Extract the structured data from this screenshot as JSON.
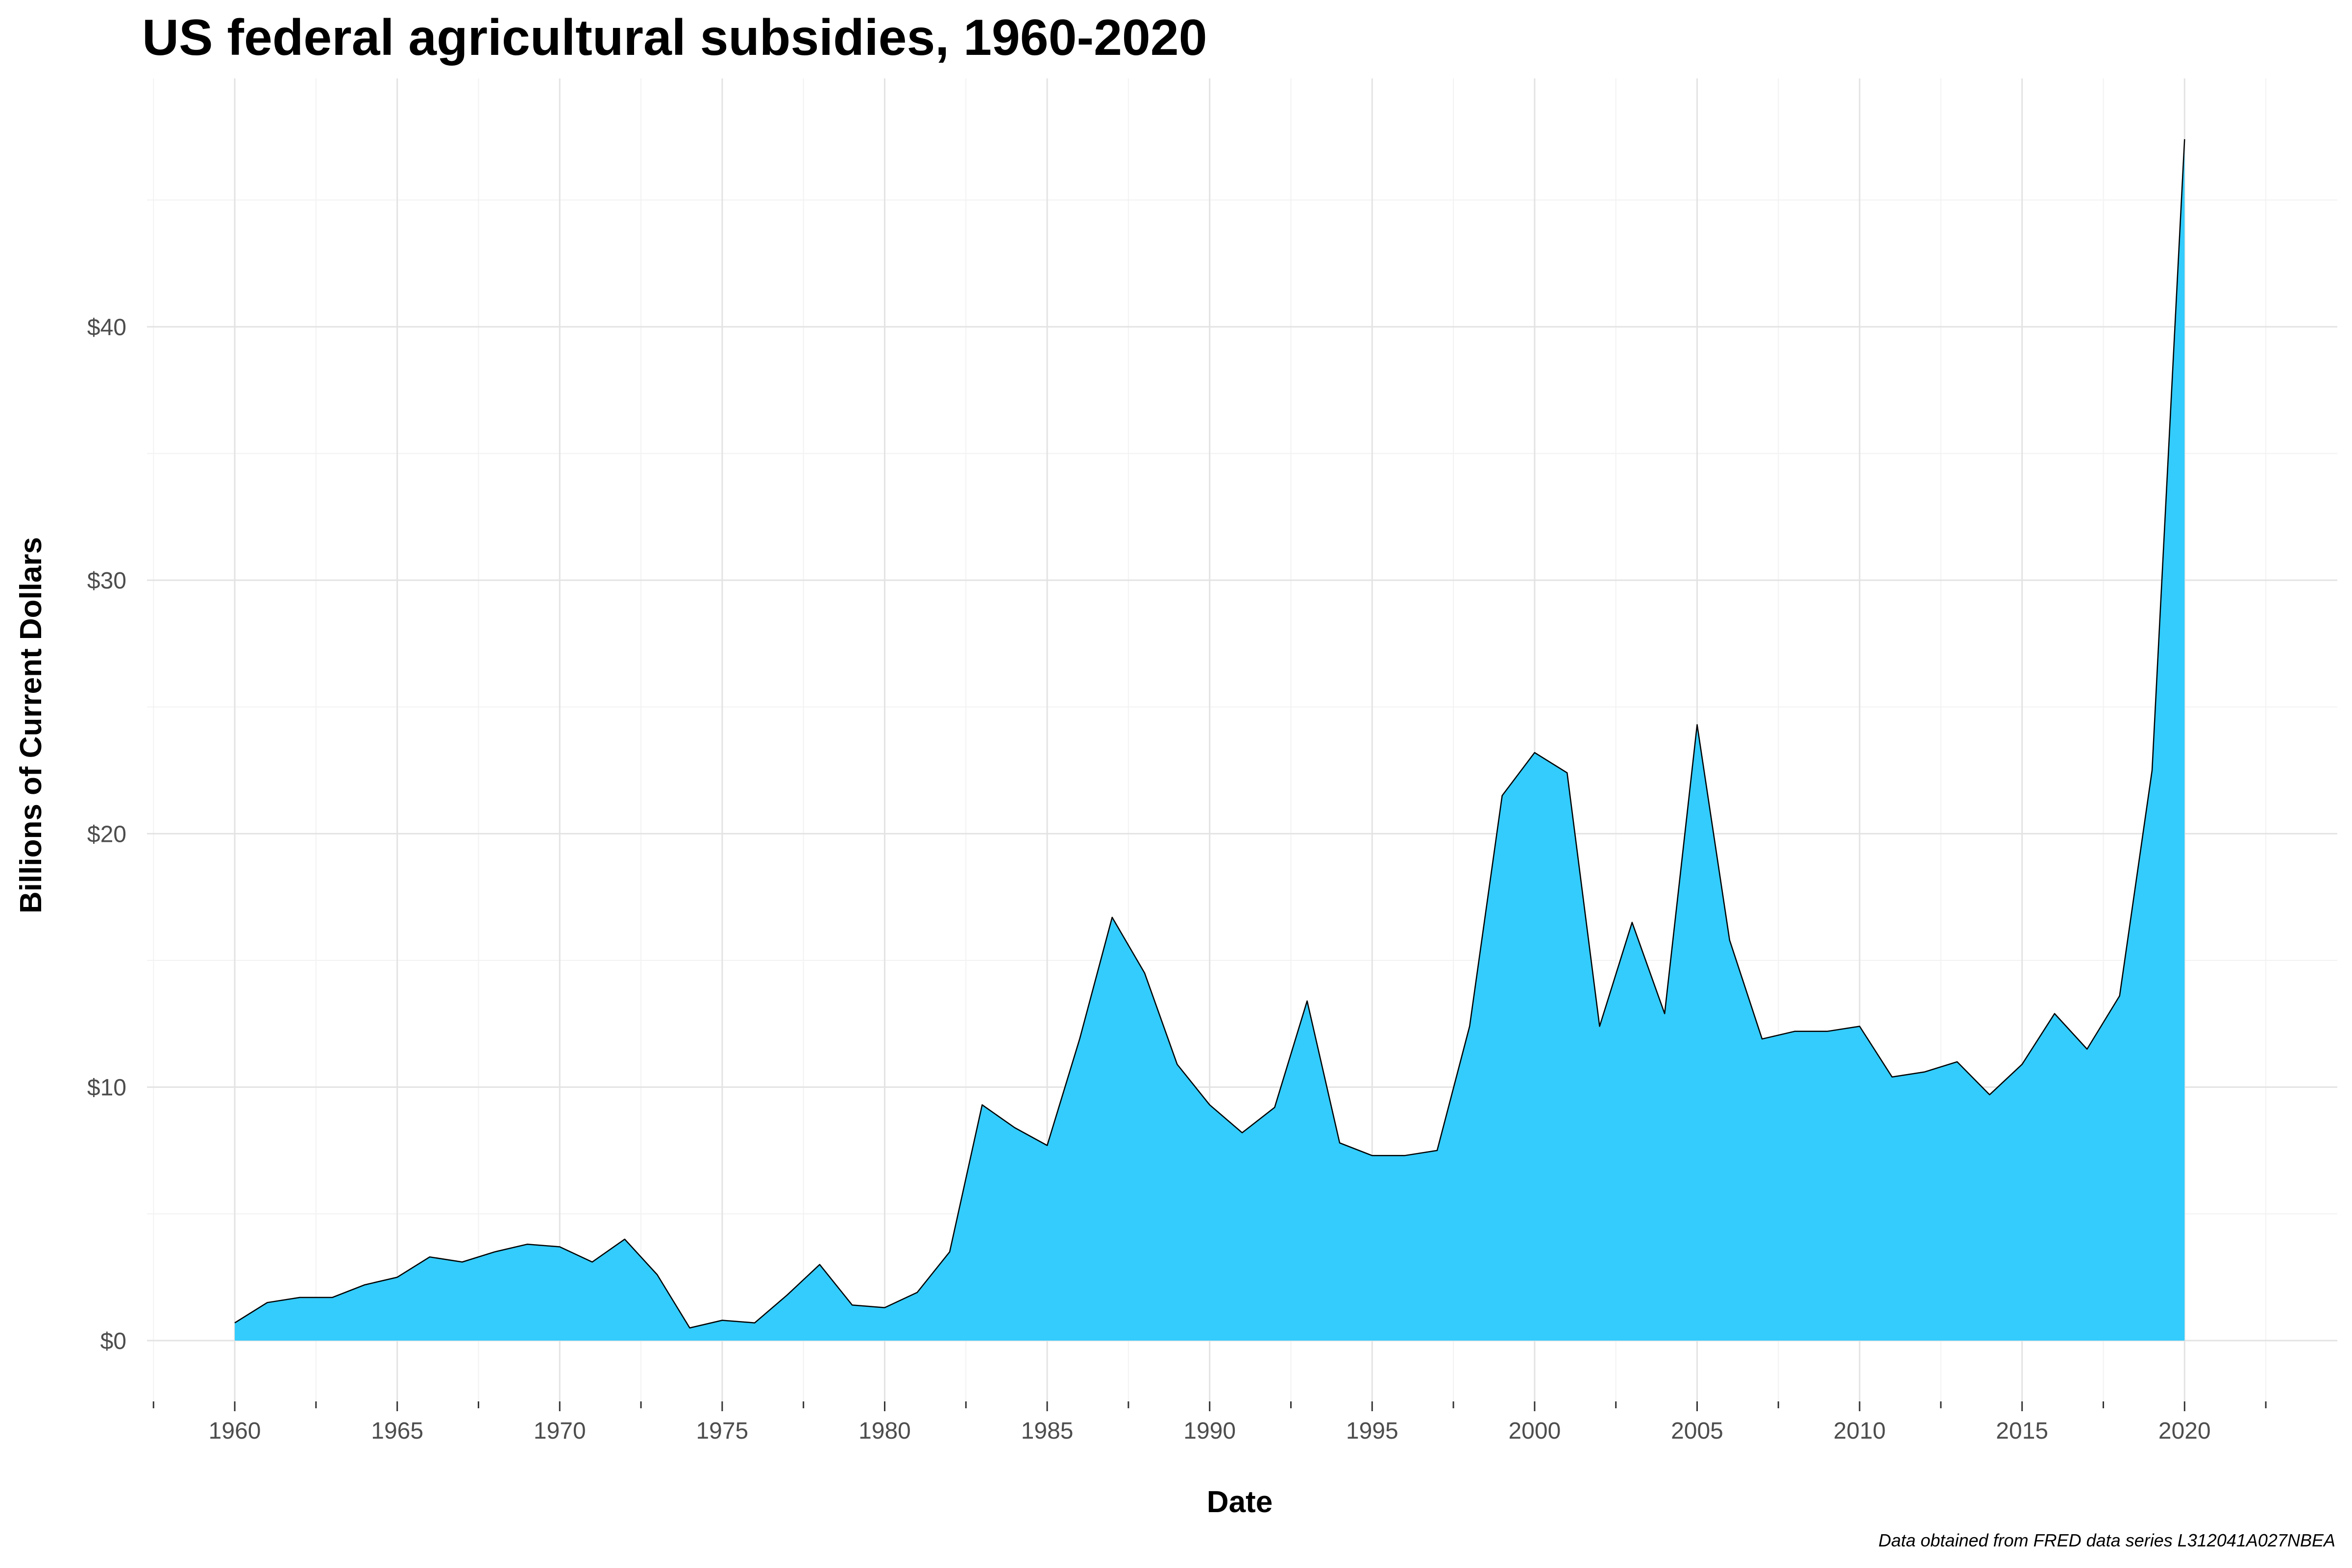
{
  "chart_data": {
    "type": "area",
    "title": "US federal agricultural subsidies, 1960-2020",
    "xlabel": "Date",
    "ylabel": "Billions of Current Dollars",
    "caption": "Data obtained from FRED data series L312041A027NBEA",
    "xlim": [
      1957.3,
      2024.7
    ],
    "ylim": [
      -2.4,
      49.8
    ],
    "x_ticks": [
      1960,
      1965,
      1970,
      1975,
      1980,
      1985,
      1990,
      1995,
      2000,
      2005,
      2010,
      2015,
      2020
    ],
    "x_tick_labels": [
      "1960",
      "1965",
      "1970",
      "1975",
      "1980",
      "1985",
      "1990",
      "1995",
      "2000",
      "2005",
      "2010",
      "2015",
      "2020"
    ],
    "y_ticks": [
      0,
      10,
      20,
      30,
      40
    ],
    "y_tick_labels": [
      "$0",
      "$10",
      "$20",
      "$30",
      "$40"
    ],
    "grid": true,
    "fill_color": "#33ccfc",
    "line_color": "#000000",
    "x": [
      1960,
      1961,
      1962,
      1963,
      1964,
      1965,
      1966,
      1967,
      1968,
      1969,
      1970,
      1971,
      1972,
      1973,
      1974,
      1975,
      1976,
      1977,
      1978,
      1979,
      1980,
      1981,
      1982,
      1983,
      1984,
      1985,
      1986,
      1987,
      1988,
      1989,
      1990,
      1991,
      1992,
      1993,
      1994,
      1995,
      1996,
      1997,
      1998,
      1999,
      2000,
      2001,
      2002,
      2003,
      2004,
      2005,
      2006,
      2007,
      2008,
      2009,
      2010,
      2011,
      2012,
      2013,
      2014,
      2015,
      2016,
      2017,
      2018,
      2019,
      2020
    ],
    "values": [
      0.7,
      1.5,
      1.7,
      1.7,
      2.2,
      2.5,
      3.3,
      3.1,
      3.5,
      3.8,
      3.7,
      3.1,
      4.0,
      2.6,
      0.5,
      0.8,
      0.7,
      1.8,
      3.0,
      1.4,
      1.3,
      1.9,
      3.5,
      9.3,
      8.4,
      7.7,
      11.9,
      16.7,
      14.5,
      10.9,
      9.3,
      8.2,
      9.2,
      13.4,
      7.8,
      7.3,
      7.3,
      7.5,
      12.4,
      21.5,
      23.2,
      22.4,
      12.4,
      16.5,
      12.9,
      24.3,
      15.8,
      11.9,
      12.2,
      12.2,
      12.4,
      10.4,
      10.6,
      11.0,
      9.7,
      10.9,
      12.9,
      11.5,
      13.6,
      22.5,
      47.4
    ]
  }
}
